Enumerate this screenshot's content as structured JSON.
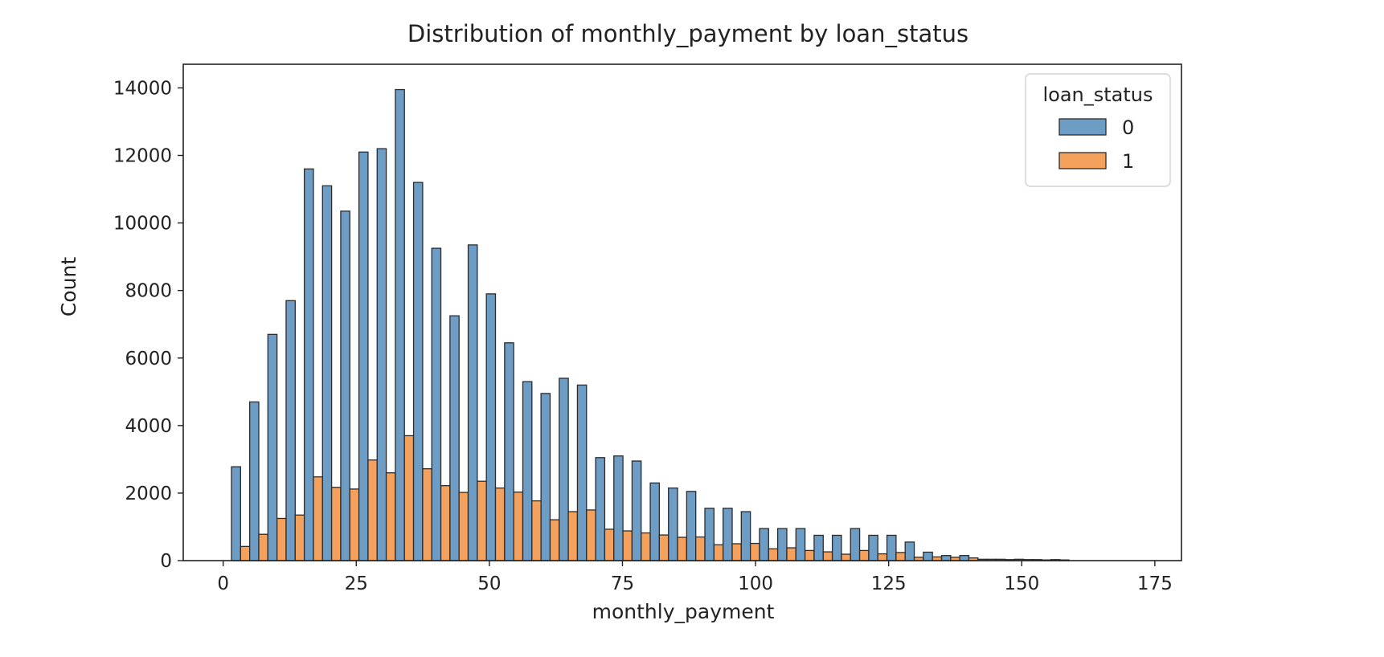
{
  "chart_data": {
    "type": "bar",
    "title": "Distribution of monthly_payment by loan_status",
    "xlabel": "monthly_payment",
    "ylabel": "Count",
    "xlim": [
      -7.5,
      180
    ],
    "ylim": [
      0,
      14700
    ],
    "x_ticks": [
      0,
      25,
      50,
      75,
      100,
      125,
      150,
      175
    ],
    "y_ticks": [
      0,
      2000,
      4000,
      6000,
      8000,
      10000,
      12000,
      14000
    ],
    "grid": false,
    "bin_width": 3.42,
    "bin_starts": [
      1.56,
      4.98,
      8.4,
      11.82,
      15.24,
      18.66,
      22.08,
      25.5,
      28.92,
      32.34,
      35.76,
      39.18,
      42.6,
      46.02,
      49.44,
      52.86,
      56.28,
      59.7,
      63.12,
      66.54,
      69.96,
      73.38,
      76.8,
      80.22,
      83.64,
      87.06,
      90.48,
      93.9,
      97.32,
      100.74,
      104.16,
      107.58,
      111.0,
      114.42,
      117.84,
      121.26,
      124.68,
      128.1,
      131.52,
      134.94,
      138.36,
      141.78,
      145.2,
      148.62,
      152.04,
      155.46
    ],
    "legend": {
      "title": "loan_status",
      "position": "top-right",
      "entries": [
        "0",
        "1"
      ]
    },
    "series": [
      {
        "name": "0",
        "color": "#6d9cc5",
        "values": [
          2780,
          4700,
          6700,
          7700,
          11600,
          11100,
          10350,
          12100,
          12200,
          13950,
          11200,
          9250,
          7250,
          9350,
          7900,
          6450,
          5300,
          4950,
          5400,
          5200,
          3050,
          3100,
          2950,
          2300,
          2150,
          2050,
          1550,
          1550,
          1450,
          950,
          950,
          950,
          750,
          750,
          950,
          750,
          750,
          550,
          250,
          150,
          150,
          40,
          40,
          40,
          30,
          30
        ]
      },
      {
        "name": "1",
        "color": "#f4a15e",
        "values": [
          420,
          780,
          1250,
          1350,
          2480,
          2170,
          2120,
          2980,
          2600,
          3700,
          2720,
          2220,
          2020,
          2350,
          2150,
          2030,
          1770,
          1210,
          1450,
          1500,
          930,
          880,
          820,
          760,
          690,
          700,
          470,
          500,
          510,
          350,
          380,
          300,
          260,
          190,
          300,
          200,
          240,
          100,
          110,
          100,
          80,
          40,
          30,
          30,
          20,
          20
        ]
      }
    ]
  }
}
